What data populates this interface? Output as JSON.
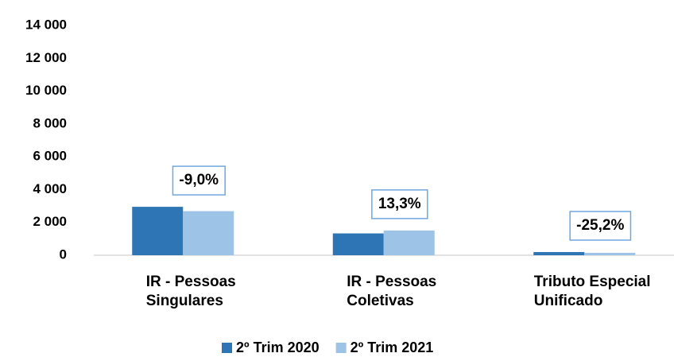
{
  "chart_data": {
    "type": "bar",
    "categories": [
      "IR - Pessoas\nSingulares",
      "IR - Pessoas\nColetivas",
      "Tributo Especial\nUnificado"
    ],
    "series": [
      {
        "name": "2º Trim 2020",
        "color": "#2e75b6",
        "values": [
          2950,
          1330,
          194
        ]
      },
      {
        "name": "2º Trim 2021",
        "color": "#9dc3e6",
        "values": [
          2685,
          1507,
          145
        ]
      }
    ],
    "annotations": [
      "-9,0%",
      "13,3%",
      "-25,2%"
    ],
    "ylim": [
      0,
      14000
    ],
    "yticks": [
      0,
      {
        "value": 2000,
        "label": "2 000"
      },
      {
        "value": 4000,
        "label": "4 000"
      },
      {
        "value": 6000,
        "label": "6 000"
      },
      {
        "value": 8000,
        "label": "8 000"
      },
      {
        "value": 10000,
        "label": "10 000"
      },
      {
        "value": 12000,
        "label": "12 000"
      },
      {
        "value": 14000,
        "label": "14 000"
      }
    ],
    "grid": false,
    "legend": "bottom"
  }
}
